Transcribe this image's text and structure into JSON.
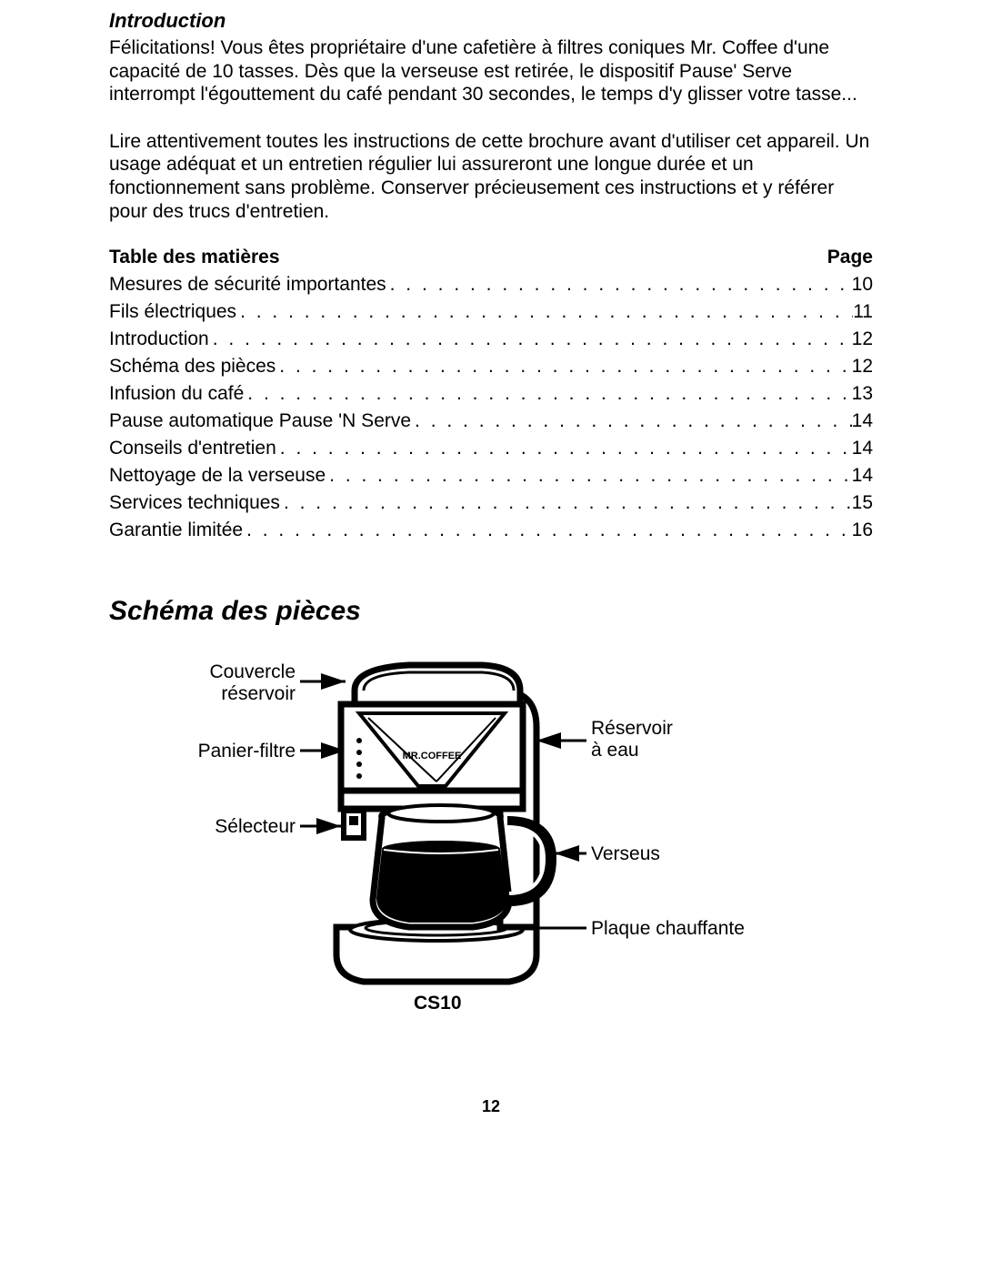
{
  "intro": {
    "heading": "Introduction",
    "para1": "Félicitations! Vous êtes propriétaire d'une cafetière à filtres coniques Mr. Coffee d'une capacité de 10 tasses. Dès que la verseuse est retirée, le dispositif Pause' Serve interrompt l'égouttement du café pendant 30 secondes, le temps d'y glisser votre tasse...",
    "para2": "Lire attentivement toutes les instructions de cette brochure avant d'utiliser cet appareil. Un usage adéquat et un entretien régulier lui assureront une longue durée et un fonctionnement sans problème. Conserver précieusement ces instructions et y référer pour des trucs d'entretien."
  },
  "toc": {
    "title": "Table des matières",
    "page_label": "Page",
    "items": [
      {
        "label": "Mesures de sécurité importantes",
        "page": "10"
      },
      {
        "label": "Fils électriques",
        "page": "11"
      },
      {
        "label": "Introduction",
        "page": "12"
      },
      {
        "label": "Schéma des pièces",
        "page": "12"
      },
      {
        "label": "Infusion du café",
        "page": "13"
      },
      {
        "label": "Pause automatique Pause 'N Serve",
        "page": "14"
      },
      {
        "label": "Conseils d'entretien",
        "page": "14"
      },
      {
        "label": "Nettoyage de la verseuse",
        "page": "14"
      },
      {
        "label": "Services techniques",
        "page": "15"
      },
      {
        "label": "Garantie limitée",
        "page": "16"
      }
    ]
  },
  "diagram": {
    "heading": "Schéma des pièces",
    "model": "CS10",
    "labels": {
      "lid": "Couvercle\nréservoir",
      "filter": "Panier-filtre",
      "selector": "Sélecteur",
      "reservoir": "Réservoir\nà eau",
      "carafe": "Verseus",
      "plate": "Plaque chauffante"
    },
    "style": {
      "stroke": "#000000",
      "stroke_width_main": 7,
      "stroke_width_detail": 4,
      "fill_dark": "#000000",
      "fill_light": "#ffffff",
      "label_fontsize": 21
    }
  },
  "page_number": "12"
}
